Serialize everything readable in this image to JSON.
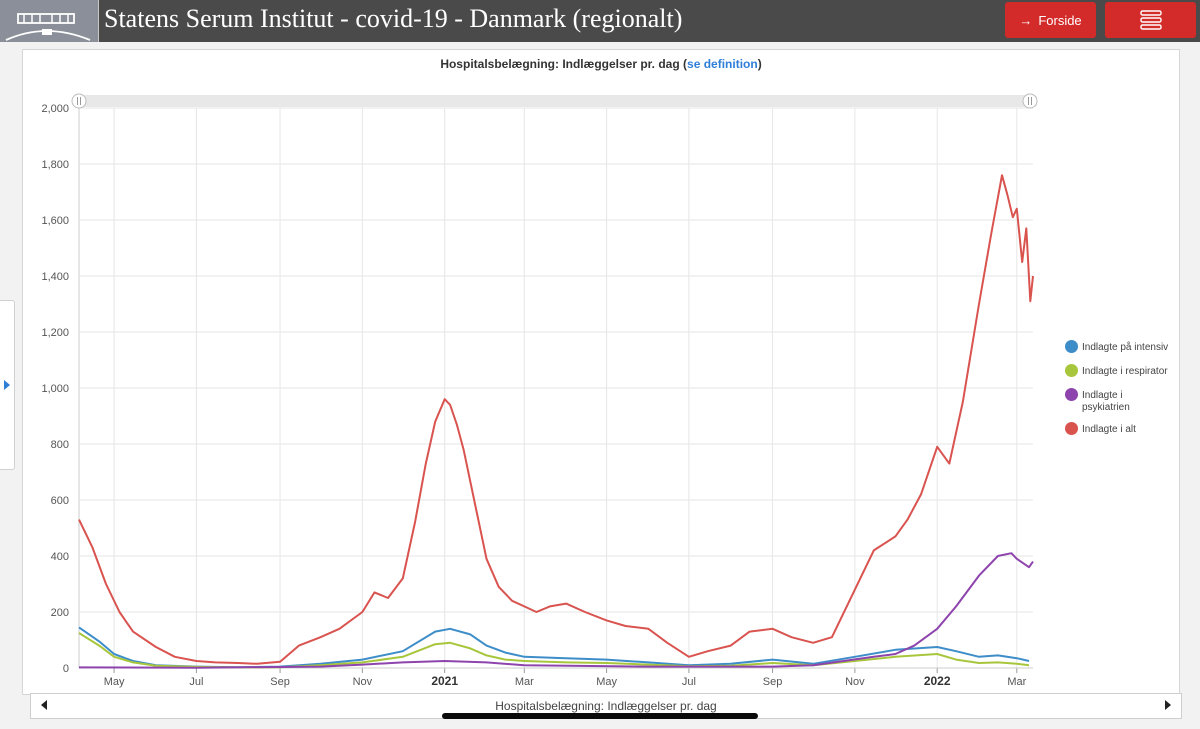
{
  "header": {
    "title": "Statens Serum Institut - covid-19 - Danmark (regionalt)",
    "home_label": "Forside",
    "home_icon": "arrow-right-icon",
    "menu_icon": "hamburger-menu-icon",
    "logo_icon": "ssi-building-logo",
    "accent_color": "#d32a2a"
  },
  "chart_card": {
    "title_main": "Hospitalsbelægning: Indlæggelser pr. dag (",
    "title_link": "se definition",
    "title_end": ")"
  },
  "navigator": {
    "label": "Hospitalsbelægning: Indlæggelser pr. dag"
  },
  "chart_data": {
    "type": "line",
    "title": "Hospitalsbelægning: Indlæggelser pr. dag (se definition)",
    "xlabel": "",
    "ylabel": "",
    "ylim": [
      0,
      2000
    ],
    "yticks": [
      "0",
      "200",
      "400",
      "600",
      "800",
      "1,000",
      "1,200",
      "1,400",
      "1,600",
      "1,800",
      "2,000"
    ],
    "xlim": [
      "2020-04-05",
      "2022-03-13"
    ],
    "xticks": [
      {
        "date": "2020-05-01",
        "label": "May",
        "bold": false
      },
      {
        "date": "2020-07-01",
        "label": "Jul",
        "bold": false
      },
      {
        "date": "2020-09-01",
        "label": "Sep",
        "bold": false
      },
      {
        "date": "2020-11-01",
        "label": "Nov",
        "bold": false
      },
      {
        "date": "2021-01-01",
        "label": "2021",
        "bold": true
      },
      {
        "date": "2021-03-01",
        "label": "Mar",
        "bold": false
      },
      {
        "date": "2021-05-01",
        "label": "May",
        "bold": false
      },
      {
        "date": "2021-07-01",
        "label": "Jul",
        "bold": false
      },
      {
        "date": "2021-09-01",
        "label": "Sep",
        "bold": false
      },
      {
        "date": "2021-11-01",
        "label": "Nov",
        "bold": false
      },
      {
        "date": "2022-01-01",
        "label": "2022",
        "bold": true
      },
      {
        "date": "2022-03-01",
        "label": "Mar",
        "bold": false
      }
    ],
    "grid": true,
    "legend_position": "right",
    "series": [
      {
        "name": "Indlagte på intensiv",
        "color": "#3d8dc9",
        "points": [
          [
            "2020-04-05",
            145
          ],
          [
            "2020-04-20",
            95
          ],
          [
            "2020-05-01",
            50
          ],
          [
            "2020-05-15",
            25
          ],
          [
            "2020-06-01",
            10
          ],
          [
            "2020-07-01",
            5
          ],
          [
            "2020-08-01",
            3
          ],
          [
            "2020-09-01",
            5
          ],
          [
            "2020-10-01",
            15
          ],
          [
            "2020-11-01",
            30
          ],
          [
            "2020-12-01",
            60
          ],
          [
            "2020-12-25",
            130
          ],
          [
            "2021-01-05",
            140
          ],
          [
            "2021-01-20",
            120
          ],
          [
            "2021-02-01",
            80
          ],
          [
            "2021-02-15",
            55
          ],
          [
            "2021-03-01",
            40
          ],
          [
            "2021-04-01",
            35
          ],
          [
            "2021-05-01",
            30
          ],
          [
            "2021-06-01",
            20
          ],
          [
            "2021-07-01",
            10
          ],
          [
            "2021-08-01",
            15
          ],
          [
            "2021-09-01",
            30
          ],
          [
            "2021-10-01",
            15
          ],
          [
            "2021-11-01",
            40
          ],
          [
            "2021-12-01",
            65
          ],
          [
            "2022-01-01",
            75
          ],
          [
            "2022-01-15",
            60
          ],
          [
            "2022-02-01",
            40
          ],
          [
            "2022-02-15",
            45
          ],
          [
            "2022-03-01",
            35
          ],
          [
            "2022-03-10",
            25
          ]
        ]
      },
      {
        "name": "Indlagte i respirator",
        "color": "#a8c63c",
        "points": [
          [
            "2020-04-05",
            125
          ],
          [
            "2020-04-20",
            80
          ],
          [
            "2020-05-01",
            40
          ],
          [
            "2020-05-15",
            20
          ],
          [
            "2020-06-01",
            8
          ],
          [
            "2020-07-01",
            4
          ],
          [
            "2020-08-01",
            2
          ],
          [
            "2020-09-01",
            3
          ],
          [
            "2020-10-01",
            10
          ],
          [
            "2020-11-01",
            20
          ],
          [
            "2020-12-01",
            40
          ],
          [
            "2020-12-25",
            85
          ],
          [
            "2021-01-05",
            90
          ],
          [
            "2021-01-20",
            70
          ],
          [
            "2021-02-01",
            45
          ],
          [
            "2021-02-15",
            30
          ],
          [
            "2021-03-01",
            25
          ],
          [
            "2021-04-01",
            20
          ],
          [
            "2021-05-01",
            18
          ],
          [
            "2021-06-01",
            12
          ],
          [
            "2021-07-01",
            6
          ],
          [
            "2021-08-01",
            8
          ],
          [
            "2021-09-01",
            18
          ],
          [
            "2021-10-01",
            10
          ],
          [
            "2021-11-01",
            25
          ],
          [
            "2021-12-01",
            40
          ],
          [
            "2022-01-01",
            50
          ],
          [
            "2022-01-15",
            30
          ],
          [
            "2022-02-01",
            18
          ],
          [
            "2022-02-15",
            20
          ],
          [
            "2022-03-01",
            15
          ],
          [
            "2022-03-10",
            10
          ]
        ]
      },
      {
        "name": "Indlagte i psykiatrien",
        "color": "#8e44ad",
        "points": [
          [
            "2020-04-05",
            2
          ],
          [
            "2020-07-01",
            1
          ],
          [
            "2020-10-01",
            5
          ],
          [
            "2020-11-01",
            12
          ],
          [
            "2020-12-01",
            20
          ],
          [
            "2021-01-01",
            25
          ],
          [
            "2021-02-01",
            20
          ],
          [
            "2021-03-01",
            10
          ],
          [
            "2021-06-01",
            5
          ],
          [
            "2021-09-01",
            5
          ],
          [
            "2021-10-01",
            10
          ],
          [
            "2021-11-15",
            40
          ],
          [
            "2021-12-01",
            50
          ],
          [
            "2021-12-15",
            80
          ],
          [
            "2022-01-01",
            140
          ],
          [
            "2022-01-15",
            220
          ],
          [
            "2022-02-01",
            330
          ],
          [
            "2022-02-15",
            400
          ],
          [
            "2022-02-25",
            410
          ],
          [
            "2022-03-01",
            390
          ],
          [
            "2022-03-10",
            360
          ],
          [
            "2022-03-13",
            380
          ]
        ]
      },
      {
        "name": "Indlagte i alt",
        "color": "#d9534f",
        "points": [
          [
            "2020-04-05",
            530
          ],
          [
            "2020-04-15",
            430
          ],
          [
            "2020-04-25",
            300
          ],
          [
            "2020-05-05",
            200
          ],
          [
            "2020-05-15",
            130
          ],
          [
            "2020-06-01",
            75
          ],
          [
            "2020-06-15",
            40
          ],
          [
            "2020-07-01",
            25
          ],
          [
            "2020-07-15",
            20
          ],
          [
            "2020-08-01",
            18
          ],
          [
            "2020-08-15",
            15
          ],
          [
            "2020-09-01",
            22
          ],
          [
            "2020-09-15",
            80
          ],
          [
            "2020-10-01",
            110
          ],
          [
            "2020-10-15",
            140
          ],
          [
            "2020-11-01",
            200
          ],
          [
            "2020-11-10",
            270
          ],
          [
            "2020-11-20",
            250
          ],
          [
            "2020-12-01",
            320
          ],
          [
            "2020-12-10",
            520
          ],
          [
            "2020-12-18",
            730
          ],
          [
            "2020-12-25",
            880
          ],
          [
            "2021-01-01",
            960
          ],
          [
            "2021-01-05",
            940
          ],
          [
            "2021-01-10",
            870
          ],
          [
            "2021-01-15",
            780
          ],
          [
            "2021-01-25",
            550
          ],
          [
            "2021-02-01",
            390
          ],
          [
            "2021-02-10",
            290
          ],
          [
            "2021-02-20",
            240
          ],
          [
            "2021-03-01",
            220
          ],
          [
            "2021-03-10",
            200
          ],
          [
            "2021-03-20",
            220
          ],
          [
            "2021-04-01",
            230
          ],
          [
            "2021-04-15",
            200
          ],
          [
            "2021-05-01",
            170
          ],
          [
            "2021-05-15",
            150
          ],
          [
            "2021-06-01",
            140
          ],
          [
            "2021-06-15",
            90
          ],
          [
            "2021-07-01",
            40
          ],
          [
            "2021-07-15",
            60
          ],
          [
            "2021-08-01",
            80
          ],
          [
            "2021-08-15",
            130
          ],
          [
            "2021-09-01",
            140
          ],
          [
            "2021-09-15",
            110
          ],
          [
            "2021-10-01",
            90
          ],
          [
            "2021-10-15",
            110
          ],
          [
            "2021-11-01",
            280
          ],
          [
            "2021-11-15",
            420
          ],
          [
            "2021-12-01",
            470
          ],
          [
            "2021-12-10",
            530
          ],
          [
            "2021-12-20",
            620
          ],
          [
            "2022-01-01",
            790
          ],
          [
            "2022-01-10",
            730
          ],
          [
            "2022-01-20",
            950
          ],
          [
            "2022-02-01",
            1300
          ],
          [
            "2022-02-10",
            1550
          ],
          [
            "2022-02-18",
            1760
          ],
          [
            "2022-02-22",
            1690
          ],
          [
            "2022-02-26",
            1610
          ],
          [
            "2022-03-01",
            1640
          ],
          [
            "2022-03-05",
            1450
          ],
          [
            "2022-03-08",
            1570
          ],
          [
            "2022-03-11",
            1310
          ],
          [
            "2022-03-13",
            1400
          ]
        ]
      }
    ]
  }
}
